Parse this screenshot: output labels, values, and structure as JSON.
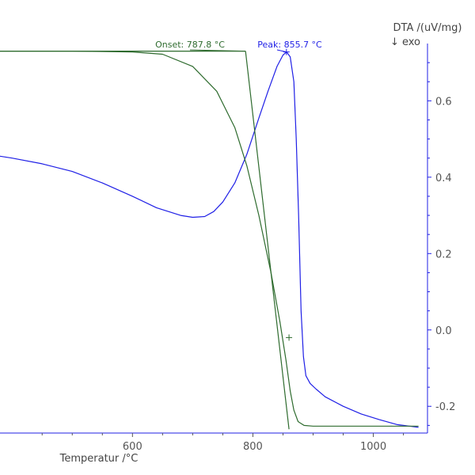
{
  "chart_data": {
    "type": "line",
    "title": "",
    "xlabel": "Temperatur /°C",
    "ylabel": "DTA /(uV/mg)",
    "ylabel_sub": "↓ exo",
    "xlim": [
      380,
      1090
    ],
    "ylim": [
      -0.27,
      0.75
    ],
    "x_ticks": [
      600,
      800,
      1000
    ],
    "y_ticks": [
      -0.2,
      0.0,
      0.2,
      0.4,
      0.6
    ],
    "y_tick_labels": [
      "-0.2",
      "0.0",
      "0.2",
      "0.4",
      "0.6"
    ],
    "grid": false,
    "series": [
      {
        "name": "",
        "axis": "right",
        "color": "#1f1fe6",
        "x": [
          380,
          400,
          450,
          500,
          550,
          600,
          640,
          680,
          700,
          720,
          735,
          750,
          770,
          790,
          810,
          825,
          840,
          850,
          856,
          862,
          868,
          872,
          876,
          880,
          884,
          888,
          895,
          905,
          920,
          950,
          980,
          1010,
          1040,
          1060,
          1075
        ],
        "y": [
          0.455,
          0.45,
          0.435,
          0.415,
          0.385,
          0.35,
          0.32,
          0.3,
          0.295,
          0.297,
          0.31,
          0.335,
          0.385,
          0.46,
          0.555,
          0.625,
          0.69,
          0.72,
          0.728,
          0.715,
          0.65,
          0.5,
          0.3,
          0.05,
          -0.07,
          -0.12,
          -0.14,
          -0.155,
          -0.175,
          -0.2,
          -0.22,
          -0.235,
          -0.248,
          -0.252,
          -0.255
        ]
      },
      {
        "name": "",
        "axis": "secondary",
        "color": "#2e6b2e",
        "x": [
          380,
          500,
          600,
          650,
          700,
          740,
          770,
          790,
          810,
          830,
          845,
          855,
          862,
          868,
          875,
          885,
          900,
          950,
          1000,
          1050,
          1075
        ],
        "y": [
          0.73,
          0.73,
          0.728,
          0.722,
          0.69,
          0.625,
          0.53,
          0.43,
          0.3,
          0.15,
          0.02,
          -0.08,
          -0.16,
          -0.21,
          -0.24,
          -0.25,
          -0.252,
          -0.252,
          -0.252,
          -0.252,
          -0.252
        ]
      }
    ],
    "construction_lines": {
      "color": "#2e6b2e",
      "baseline_y": 0.73,
      "baseline_x": [
        380,
        787.8
      ],
      "tangent_x": [
        787.8,
        860
      ],
      "tangent_y": [
        0.73,
        -0.26
      ]
    },
    "markers": [
      {
        "label": "",
        "x": 855.7,
        "y": 0.728,
        "color": "#1f1fe6"
      },
      {
        "label": "",
        "x": 860,
        "y": -0.02,
        "color": "#2e6b2e"
      }
    ],
    "annotations": [
      {
        "label": "Onset: 787.8 °C",
        "x": 787.8,
        "y": 0.73,
        "color": "#2e6b2e"
      },
      {
        "label": "Peak: 855.7 °C",
        "x": 855.7,
        "y": 0.728,
        "color": "#1f1fe6"
      }
    ]
  }
}
